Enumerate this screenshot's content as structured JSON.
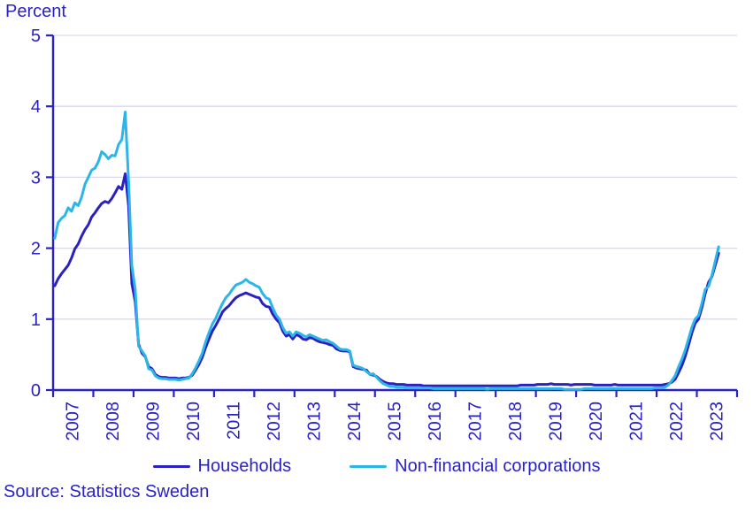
{
  "chart_data": {
    "type": "line",
    "ylabel": "Percent",
    "ylim": [
      0,
      5
    ],
    "y_ticks": [
      0,
      1,
      2,
      3,
      4,
      5
    ],
    "x_tick_labels": [
      "2007",
      "2008",
      "2009",
      "2010",
      "2011",
      "2012",
      "2013",
      "2014",
      "2015",
      "2016",
      "2017",
      "2018",
      "2019",
      "2020",
      "2021",
      "2022",
      "2023"
    ],
    "frequency": "monthly",
    "x_range": "2007-01 to 2023-07",
    "grid": "horizontal",
    "legend_position": "bottom",
    "axis_color": "#2a22c3",
    "grid_color": "#d9d9ee",
    "series": [
      {
        "name": "Households",
        "color": "#2a21c0",
        "values": [
          1.47,
          1.57,
          1.64,
          1.7,
          1.76,
          1.86,
          1.99,
          2.06,
          2.17,
          2.26,
          2.33,
          2.44,
          2.5,
          2.57,
          2.63,
          2.66,
          2.64,
          2.7,
          2.78,
          2.87,
          2.83,
          3.05,
          2.6,
          1.5,
          1.25,
          0.65,
          0.52,
          0.47,
          0.33,
          0.3,
          0.22,
          0.19,
          0.18,
          0.18,
          0.17,
          0.17,
          0.17,
          0.16,
          0.17,
          0.17,
          0.18,
          0.21,
          0.28,
          0.36,
          0.46,
          0.6,
          0.72,
          0.83,
          0.91,
          1.0,
          1.1,
          1.15,
          1.19,
          1.25,
          1.3,
          1.33,
          1.35,
          1.37,
          1.35,
          1.33,
          1.31,
          1.3,
          1.22,
          1.18,
          1.17,
          1.07,
          1.0,
          0.95,
          0.83,
          0.76,
          0.78,
          0.72,
          0.78,
          0.76,
          0.72,
          0.71,
          0.74,
          0.73,
          0.7,
          0.68,
          0.67,
          0.66,
          0.64,
          0.63,
          0.58,
          0.56,
          0.55,
          0.55,
          0.54,
          0.33,
          0.31,
          0.3,
          0.29,
          0.28,
          0.22,
          0.21,
          0.19,
          0.15,
          0.12,
          0.1,
          0.09,
          0.09,
          0.08,
          0.08,
          0.08,
          0.07,
          0.07,
          0.07,
          0.07,
          0.07,
          0.06,
          0.06,
          0.06,
          0.06,
          0.06,
          0.06,
          0.06,
          0.06,
          0.06,
          0.06,
          0.06,
          0.06,
          0.06,
          0.06,
          0.06,
          0.06,
          0.06,
          0.06,
          0.06,
          0.06,
          0.06,
          0.06,
          0.06,
          0.06,
          0.06,
          0.06,
          0.06,
          0.06,
          0.06,
          0.07,
          0.07,
          0.07,
          0.07,
          0.07,
          0.08,
          0.08,
          0.08,
          0.08,
          0.09,
          0.08,
          0.08,
          0.08,
          0.08,
          0.08,
          0.07,
          0.08,
          0.08,
          0.08,
          0.08,
          0.08,
          0.08,
          0.07,
          0.07,
          0.07,
          0.07,
          0.07,
          0.07,
          0.08,
          0.07,
          0.07,
          0.07,
          0.07,
          0.07,
          0.07,
          0.07,
          0.07,
          0.07,
          0.07,
          0.07,
          0.07,
          0.07,
          0.07,
          0.08,
          0.09,
          0.11,
          0.15,
          0.24,
          0.34,
          0.47,
          0.63,
          0.8,
          0.94,
          1.0,
          1.16,
          1.36,
          1.52,
          1.6,
          1.76,
          1.93
        ]
      },
      {
        "name": "Non-financial corporations",
        "color": "#2cb5e8",
        "values": [
          2.14,
          2.36,
          2.42,
          2.46,
          2.57,
          2.52,
          2.64,
          2.6,
          2.72,
          2.9,
          3.0,
          3.1,
          3.13,
          3.22,
          3.36,
          3.32,
          3.26,
          3.31,
          3.3,
          3.46,
          3.53,
          3.92,
          2.95,
          1.75,
          1.42,
          0.62,
          0.55,
          0.48,
          0.3,
          0.28,
          0.2,
          0.17,
          0.16,
          0.16,
          0.15,
          0.15,
          0.15,
          0.14,
          0.15,
          0.16,
          0.17,
          0.23,
          0.31,
          0.41,
          0.52,
          0.68,
          0.81,
          0.93,
          1.01,
          1.12,
          1.22,
          1.3,
          1.35,
          1.42,
          1.48,
          1.5,
          1.52,
          1.56,
          1.52,
          1.5,
          1.47,
          1.45,
          1.36,
          1.3,
          1.28,
          1.16,
          1.06,
          1.0,
          0.88,
          0.8,
          0.82,
          0.76,
          0.82,
          0.8,
          0.77,
          0.75,
          0.78,
          0.76,
          0.74,
          0.72,
          0.7,
          0.71,
          0.68,
          0.66,
          0.62,
          0.58,
          0.57,
          0.57,
          0.55,
          0.35,
          0.33,
          0.32,
          0.3,
          0.26,
          0.22,
          0.23,
          0.18,
          0.13,
          0.09,
          0.07,
          0.05,
          0.05,
          0.04,
          0.04,
          0.04,
          0.03,
          0.03,
          0.03,
          0.03,
          0.03,
          0.03,
          0.03,
          0.03,
          0.02,
          0.02,
          0.02,
          0.02,
          0.02,
          0.02,
          0.02,
          0.02,
          0.02,
          0.02,
          0.02,
          0.02,
          0.02,
          0.02,
          0.02,
          0.02,
          0.01,
          0.02,
          0.02,
          0.02,
          0.02,
          0.02,
          0.02,
          0.02,
          0.02,
          0.02,
          0.02,
          0.02,
          0.02,
          0.02,
          0.02,
          0.02,
          0.02,
          0.02,
          0.02,
          0.02,
          0.02,
          0.02,
          0.02,
          0.01,
          0.01,
          0.01,
          0.01,
          0.01,
          0.01,
          0.02,
          0.02,
          0.02,
          0.02,
          0.02,
          0.02,
          0.02,
          0.02,
          0.02,
          0.02,
          0.02,
          0.02,
          0.02,
          0.02,
          0.02,
          0.02,
          0.02,
          0.02,
          0.02,
          0.02,
          0.02,
          0.03,
          0.03,
          0.03,
          0.04,
          0.07,
          0.13,
          0.2,
          0.32,
          0.43,
          0.56,
          0.72,
          0.88,
          1.0,
          1.05,
          1.22,
          1.42,
          1.46,
          1.62,
          1.82,
          2.02
        ]
      }
    ]
  },
  "source": {
    "label": "Source: Statistics Sweden"
  }
}
